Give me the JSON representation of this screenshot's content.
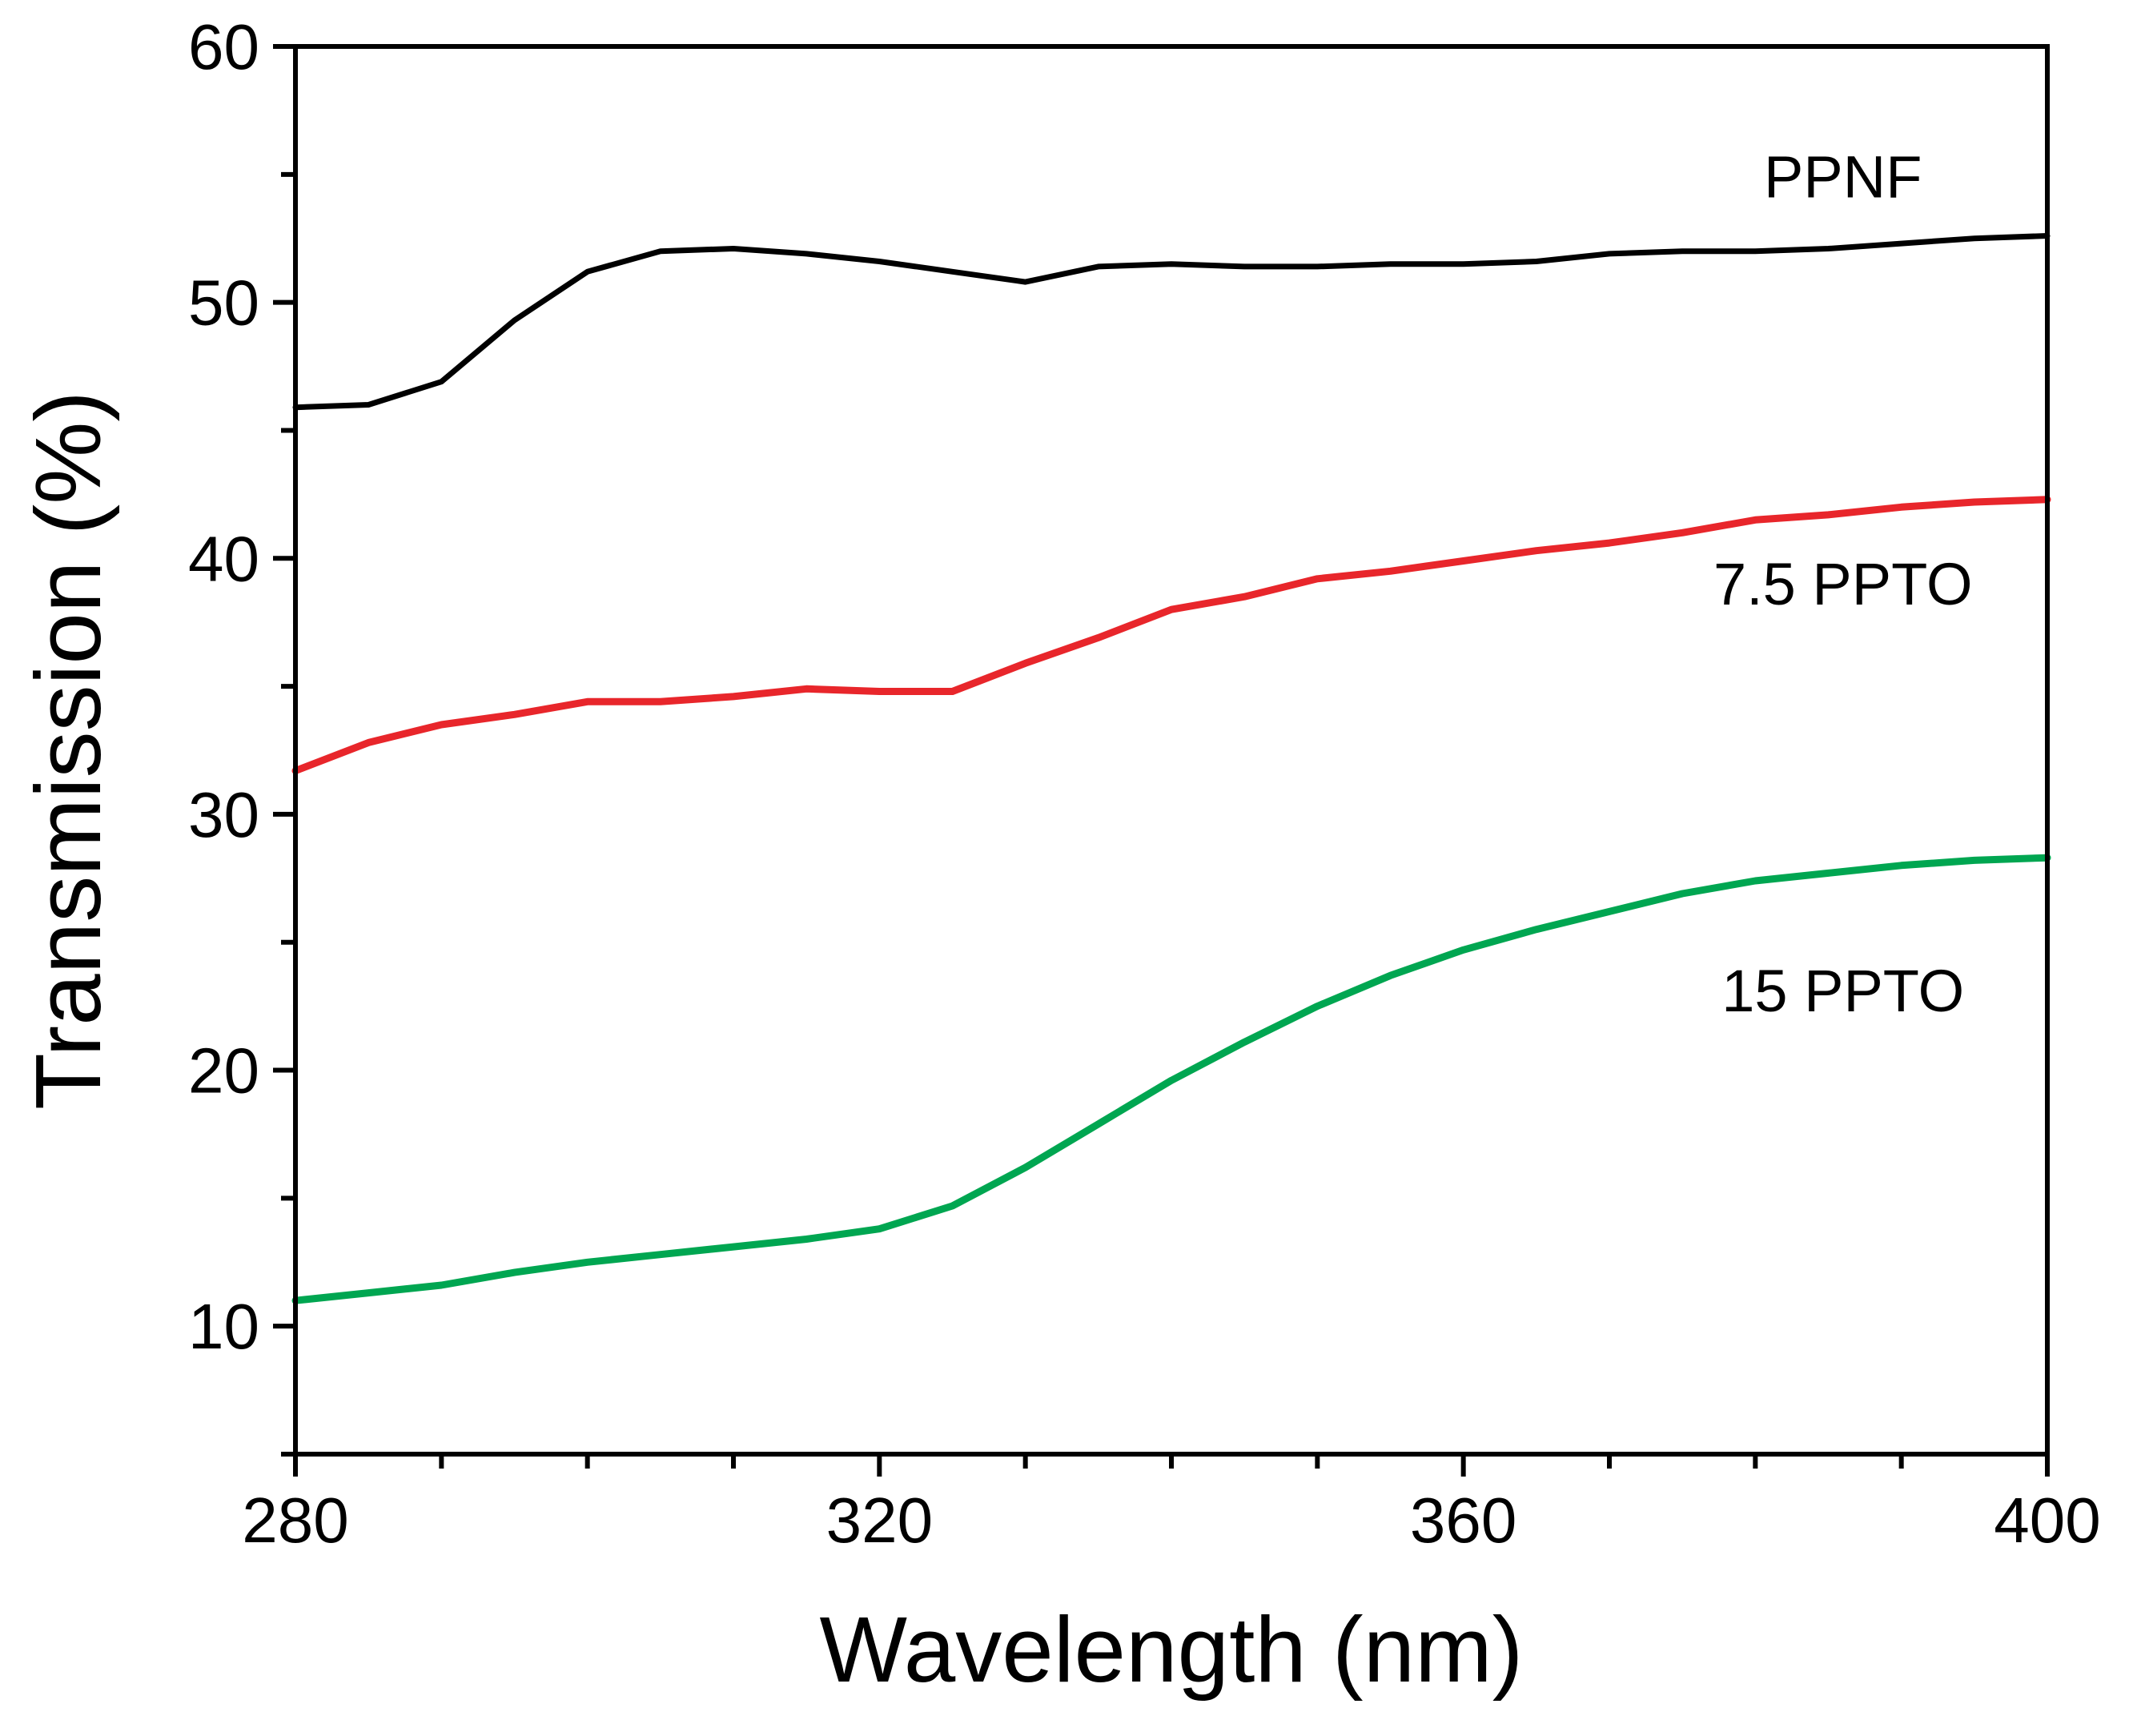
{
  "chart_data": {
    "type": "line",
    "title": "",
    "xlabel": "Wavelength (nm)",
    "ylabel": "Transmission (%)",
    "xlim": [
      280,
      400
    ],
    "ylim": [
      5,
      60
    ],
    "x_ticks": [
      280,
      320,
      360,
      400
    ],
    "y_ticks": [
      10,
      20,
      30,
      40,
      50,
      60
    ],
    "x_minor_step": 10,
    "y_minor_step": 5,
    "grid": false,
    "legend": "inline labels at right",
    "series": [
      {
        "name": "PPNF",
        "color": "#000000",
        "label_at": [
          386,
          54.1
        ],
        "points": [
          [
            280,
            45.9
          ],
          [
            285,
            46.0
          ],
          [
            290,
            46.9
          ],
          [
            295,
            49.3
          ],
          [
            300,
            51.2
          ],
          [
            305,
            52.0
          ],
          [
            310,
            52.1
          ],
          [
            315,
            51.9
          ],
          [
            320,
            51.6
          ],
          [
            325,
            51.2
          ],
          [
            330,
            50.8
          ],
          [
            335,
            51.4
          ],
          [
            340,
            51.5
          ],
          [
            345,
            51.4
          ],
          [
            350,
            51.4
          ],
          [
            355,
            51.5
          ],
          [
            360,
            51.5
          ],
          [
            365,
            51.6
          ],
          [
            370,
            51.9
          ],
          [
            375,
            52.0
          ],
          [
            380,
            52.0
          ],
          [
            385,
            52.1
          ],
          [
            390,
            52.3
          ],
          [
            395,
            52.5
          ],
          [
            400,
            52.6
          ]
        ]
      },
      {
        "name": "7.5 PPTO",
        "color": "#e8262b",
        "label_at": [
          386,
          38.2
        ],
        "points": [
          [
            280,
            31.7
          ],
          [
            285,
            32.8
          ],
          [
            290,
            33.5
          ],
          [
            295,
            33.9
          ],
          [
            300,
            34.4
          ],
          [
            305,
            34.4
          ],
          [
            310,
            34.6
          ],
          [
            315,
            34.9
          ],
          [
            320,
            34.8
          ],
          [
            325,
            34.8
          ],
          [
            330,
            35.9
          ],
          [
            335,
            36.9
          ],
          [
            340,
            38.0
          ],
          [
            345,
            38.5
          ],
          [
            350,
            39.2
          ],
          [
            355,
            39.5
          ],
          [
            360,
            39.9
          ],
          [
            365,
            40.3
          ],
          [
            370,
            40.6
          ],
          [
            375,
            41.0
          ],
          [
            380,
            41.5
          ],
          [
            385,
            41.7
          ],
          [
            390,
            42.0
          ],
          [
            395,
            42.2
          ],
          [
            400,
            42.3
          ]
        ]
      },
      {
        "name": "15 PPTO",
        "color": "#00a651",
        "label_at": [
          386,
          22.3
        ],
        "points": [
          [
            280,
            11.0
          ],
          [
            285,
            11.3
          ],
          [
            290,
            11.6
          ],
          [
            295,
            12.1
          ],
          [
            300,
            12.5
          ],
          [
            305,
            12.8
          ],
          [
            310,
            13.1
          ],
          [
            315,
            13.4
          ],
          [
            320,
            13.8
          ],
          [
            325,
            14.7
          ],
          [
            330,
            16.2
          ],
          [
            335,
            17.9
          ],
          [
            340,
            19.6
          ],
          [
            345,
            21.1
          ],
          [
            350,
            22.5
          ],
          [
            355,
            23.7
          ],
          [
            360,
            24.7
          ],
          [
            365,
            25.5
          ],
          [
            370,
            26.2
          ],
          [
            375,
            26.9
          ],
          [
            380,
            27.4
          ],
          [
            385,
            27.7
          ],
          [
            390,
            28.0
          ],
          [
            395,
            28.2
          ],
          [
            400,
            28.3
          ]
        ]
      }
    ]
  }
}
